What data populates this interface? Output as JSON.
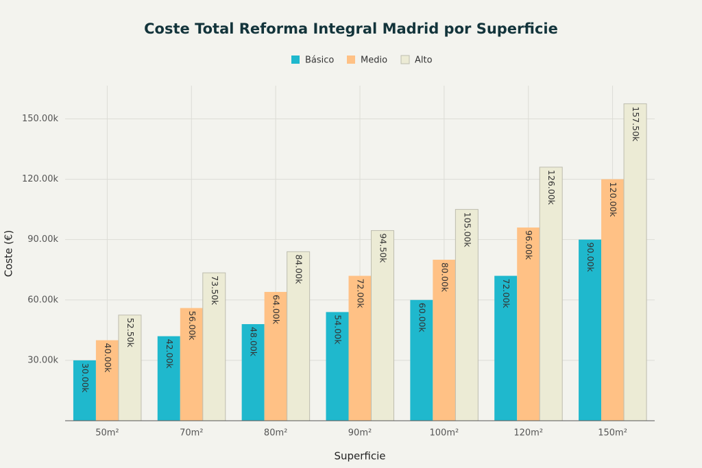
{
  "chart_data": {
    "type": "bar",
    "title": "Coste Total Reforma Integral Madrid por Superficie",
    "x_label": "Superficie",
    "y_label": "Coste (€)",
    "categories": [
      "50m²",
      "70m²",
      "80m²",
      "90m²",
      "100m²",
      "120m²",
      "150m²"
    ],
    "series": [
      {
        "name": "Básico",
        "color": "#1fb8cd",
        "values": [
          30000,
          42000,
          48000,
          54000,
          60000,
          72000,
          90000
        ],
        "value_labels": [
          "30.00k",
          "42.00k",
          "48.00k",
          "54.00k",
          "60.00k",
          "72.00k",
          "90.00k"
        ]
      },
      {
        "name": "Medio",
        "color": "#ffc185",
        "values": [
          40000,
          56000,
          64000,
          72000,
          80000,
          96000,
          120000
        ],
        "value_labels": [
          "40.00k",
          "56.00k",
          "64.00k",
          "72.00k",
          "80.00k",
          "96.00k",
          "120.00k"
        ]
      },
      {
        "name": "Alto",
        "color": "#ecebd5",
        "values": [
          52500,
          73500,
          84000,
          94500,
          105000,
          126000,
          157500
        ],
        "value_labels": [
          "52.50k",
          "73.50k",
          "84.00k",
          "94.50k",
          "105.00k",
          "126.00k",
          "157.50k"
        ]
      }
    ],
    "ylim": [
      0,
      166500
    ],
    "yticks": [
      {
        "value": 30000,
        "label": "30.00k"
      },
      {
        "value": 60000,
        "label": "60.00k"
      },
      {
        "value": 90000,
        "label": "90.00k"
      },
      {
        "value": 120000,
        "label": "120.00k"
      },
      {
        "value": 150000,
        "label": "150.00k"
      }
    ],
    "grid": true
  }
}
